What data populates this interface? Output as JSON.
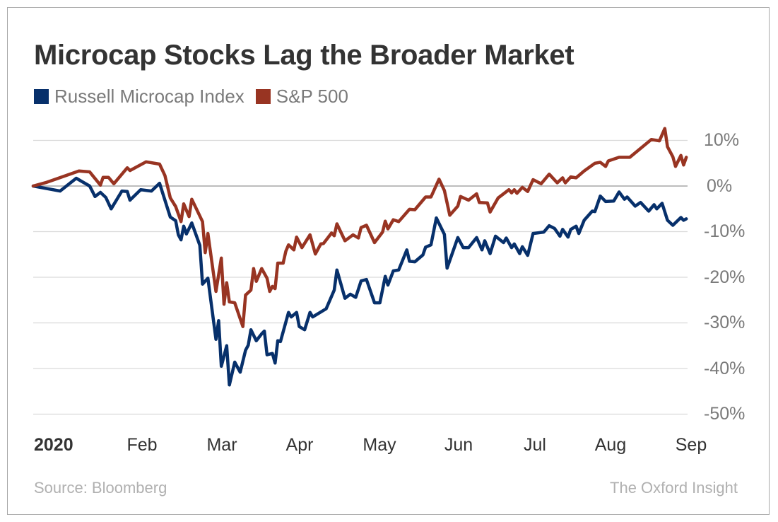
{
  "chart_data": {
    "type": "line",
    "title": "Microcap Stocks Lag the Broader Market",
    "xlabel": "",
    "ylabel": "",
    "x_tick_labels": [
      "2020",
      "Feb",
      "Mar",
      "Apr",
      "May",
      "Jun",
      "Jul",
      "Aug",
      "Sep"
    ],
    "xlim": [
      "2020-01-01",
      "2020-09-01"
    ],
    "y_tick_labels": [
      "10%",
      "0%",
      "-10%",
      "-20%",
      "-30%",
      "-40%",
      "-50%"
    ],
    "y_ticks": [
      10,
      0,
      -10,
      -20,
      -30,
      -40,
      -50
    ],
    "ylim": [
      -50,
      10
    ],
    "y_unit": "%",
    "grid": "horizontal",
    "y_axis_side": "right",
    "legend_position": "top-left",
    "series": [
      {
        "name": "Russell Microcap Index",
        "color": "#07306b",
        "points": [
          [
            "2020-01-01",
            0
          ],
          [
            "2020-01-11",
            -1.1
          ],
          [
            "2020-01-17",
            1.7
          ],
          [
            "2020-01-22",
            0
          ],
          [
            "2020-01-24",
            -2.3
          ],
          [
            "2020-01-26",
            -1.4
          ],
          [
            "2020-01-28",
            -2.5
          ],
          [
            "2020-01-30",
            -5.0
          ],
          [
            "2020-02-03",
            -1.1
          ],
          [
            "2020-02-05",
            -1.2
          ],
          [
            "2020-02-06",
            -3.1
          ],
          [
            "2020-02-10",
            -0.8
          ],
          [
            "2020-02-14",
            -1.1
          ],
          [
            "2020-02-17",
            0.6
          ],
          [
            "2020-02-21",
            -6.8
          ],
          [
            "2020-02-23",
            -7.6
          ],
          [
            "2020-02-24",
            -10.7
          ],
          [
            "2020-02-25",
            -11.8
          ],
          [
            "2020-02-26",
            -8.8
          ],
          [
            "2020-02-27",
            -10.5
          ],
          [
            "2020-02-29",
            -8.1
          ],
          [
            "2020-03-03",
            -13.0
          ],
          [
            "2020-03-04",
            -21.5
          ],
          [
            "2020-03-06",
            -20.2
          ],
          [
            "2020-03-09",
            -33.6
          ],
          [
            "2020-03-10",
            -29.5
          ],
          [
            "2020-03-11",
            -39.5
          ],
          [
            "2020-03-13",
            -35.0
          ],
          [
            "2020-03-14",
            -43.6
          ],
          [
            "2020-03-16",
            -38.6
          ],
          [
            "2020-03-18",
            -40.8
          ],
          [
            "2020-03-20",
            -36.0
          ],
          [
            "2020-03-21",
            -34.9
          ],
          [
            "2020-03-22",
            -31.5
          ],
          [
            "2020-03-24",
            -33.9
          ],
          [
            "2020-03-26",
            -32.4
          ],
          [
            "2020-03-27",
            -31.8
          ],
          [
            "2020-03-28",
            -37.0
          ],
          [
            "2020-03-30",
            -36.7
          ],
          [
            "2020-03-31",
            -38.8
          ],
          [
            "2020-04-01",
            -33.9
          ],
          [
            "2020-04-02",
            -34.1
          ],
          [
            "2020-04-05",
            -27.7
          ],
          [
            "2020-04-06",
            -28.7
          ],
          [
            "2020-04-08",
            -27.7
          ],
          [
            "2020-04-09",
            -30.8
          ],
          [
            "2020-04-11",
            -31.5
          ],
          [
            "2020-04-13",
            -27.7
          ],
          [
            "2020-04-14",
            -28.7
          ],
          [
            "2020-04-19",
            -26.9
          ],
          [
            "2020-04-22",
            -22.8
          ],
          [
            "2020-04-23",
            -18.4
          ],
          [
            "2020-04-26",
            -24.6
          ],
          [
            "2020-04-28",
            -23.7
          ],
          [
            "2020-04-30",
            -24.4
          ],
          [
            "2020-05-02",
            -20.8
          ],
          [
            "2020-05-04",
            -20.5
          ],
          [
            "2020-05-07",
            -25.6
          ],
          [
            "2020-05-09",
            -25.6
          ],
          [
            "2020-05-11",
            -19.8
          ],
          [
            "2020-05-12",
            -21.7
          ],
          [
            "2020-05-14",
            -18.6
          ],
          [
            "2020-05-16",
            -18.4
          ],
          [
            "2020-05-19",
            -14.0
          ],
          [
            "2020-05-20",
            -16.5
          ],
          [
            "2020-05-22",
            -16.6
          ],
          [
            "2020-05-25",
            -15.1
          ],
          [
            "2020-05-26",
            -13.4
          ],
          [
            "2020-05-28",
            -12.9
          ],
          [
            "2020-05-30",
            -7.0
          ],
          [
            "2020-06-02",
            -10.6
          ],
          [
            "2020-06-03",
            -18.0
          ],
          [
            "2020-06-07",
            -11.3
          ],
          [
            "2020-06-09",
            -13.5
          ],
          [
            "2020-06-11",
            -13.5
          ],
          [
            "2020-06-14",
            -11.3
          ],
          [
            "2020-06-16",
            -14.0
          ],
          [
            "2020-06-17",
            -12.0
          ],
          [
            "2020-06-19",
            -14.8
          ],
          [
            "2020-06-21",
            -11.0
          ],
          [
            "2020-06-24",
            -12.4
          ],
          [
            "2020-06-25",
            -11.4
          ],
          [
            "2020-06-27",
            -13.5
          ],
          [
            "2020-06-28",
            -12.7
          ],
          [
            "2020-06-30",
            -14.8
          ],
          [
            "2020-07-01",
            -13.3
          ],
          [
            "2020-07-03",
            -15.2
          ],
          [
            "2020-07-05",
            -10.4
          ],
          [
            "2020-07-09",
            -10.1
          ],
          [
            "2020-07-11",
            -8.7
          ],
          [
            "2020-07-13",
            -9.3
          ],
          [
            "2020-07-15",
            -11.0
          ],
          [
            "2020-07-16",
            -9.5
          ],
          [
            "2020-07-18",
            -11.2
          ],
          [
            "2020-07-19",
            -9.5
          ],
          [
            "2020-07-21",
            -8.8
          ],
          [
            "2020-07-22",
            -10.4
          ],
          [
            "2020-07-24",
            -7.5
          ],
          [
            "2020-07-27",
            -5.5
          ],
          [
            "2020-07-28",
            -5.6
          ],
          [
            "2020-07-30",
            -2.2
          ],
          [
            "2020-08-01",
            -3.4
          ],
          [
            "2020-08-04",
            -3.3
          ],
          [
            "2020-08-06",
            -1.3
          ],
          [
            "2020-08-08",
            -2.9
          ],
          [
            "2020-08-09",
            -2.4
          ],
          [
            "2020-08-12",
            -4.4
          ],
          [
            "2020-08-14",
            -3.6
          ],
          [
            "2020-08-17",
            -5.5
          ],
          [
            "2020-08-19",
            -4.1
          ],
          [
            "2020-08-20",
            -5.0
          ],
          [
            "2020-08-22",
            -3.8
          ],
          [
            "2020-08-24",
            -7.5
          ],
          [
            "2020-08-26",
            -8.6
          ],
          [
            "2020-08-29",
            -6.9
          ],
          [
            "2020-08-30",
            -7.5
          ],
          [
            "2020-08-31",
            -7.2
          ]
        ]
      },
      {
        "name": "S&P 500",
        "color": "#983422",
        "points": [
          [
            "2020-01-01",
            0
          ],
          [
            "2020-01-06",
            0.8
          ],
          [
            "2020-01-18",
            3.3
          ],
          [
            "2020-01-22",
            3.1
          ],
          [
            "2020-01-26",
            0.2
          ],
          [
            "2020-01-27",
            1.9
          ],
          [
            "2020-01-29",
            1.9
          ],
          [
            "2020-01-31",
            0.5
          ],
          [
            "2020-02-05",
            4.0
          ],
          [
            "2020-02-06",
            3.4
          ],
          [
            "2020-02-12",
            5.3
          ],
          [
            "2020-02-17",
            4.8
          ],
          [
            "2020-02-19",
            2.3
          ],
          [
            "2020-02-21",
            -2.6
          ],
          [
            "2020-02-23",
            -4.5
          ],
          [
            "2020-02-25",
            -7.8
          ],
          [
            "2020-02-26",
            -3.9
          ],
          [
            "2020-02-28",
            -6.7
          ],
          [
            "2020-02-29",
            -2.9
          ],
          [
            "2020-03-04",
            -7.8
          ],
          [
            "2020-03-05",
            -14.6
          ],
          [
            "2020-03-06",
            -10.4
          ],
          [
            "2020-03-09",
            -23.1
          ],
          [
            "2020-03-11",
            -15.8
          ],
          [
            "2020-03-12",
            -25.9
          ],
          [
            "2020-03-13",
            -21.2
          ],
          [
            "2020-03-14",
            -25.4
          ],
          [
            "2020-03-16",
            -25.6
          ],
          [
            "2020-03-19",
            -30.8
          ],
          [
            "2020-03-20",
            -23.9
          ],
          [
            "2020-03-22",
            -22.8
          ],
          [
            "2020-03-23",
            -18.1
          ],
          [
            "2020-03-24",
            -20.9
          ],
          [
            "2020-03-26",
            -18.1
          ],
          [
            "2020-03-28",
            -20.2
          ],
          [
            "2020-03-29",
            -23.1
          ],
          [
            "2020-03-30",
            -22.0
          ],
          [
            "2020-03-31",
            -22.5
          ],
          [
            "2020-04-01",
            -16.9
          ],
          [
            "2020-04-03",
            -16.9
          ],
          [
            "2020-04-04",
            -14.3
          ],
          [
            "2020-04-05",
            -12.9
          ],
          [
            "2020-04-07",
            -14.0
          ],
          [
            "2020-04-08",
            -11.2
          ],
          [
            "2020-04-10",
            -13.5
          ],
          [
            "2020-04-13",
            -10.7
          ],
          [
            "2020-04-15",
            -14.9
          ],
          [
            "2020-04-17",
            -12.7
          ],
          [
            "2020-04-18",
            -12.6
          ],
          [
            "2020-04-21",
            -10.3
          ],
          [
            "2020-04-22",
            -10.9
          ],
          [
            "2020-04-23",
            -8.3
          ],
          [
            "2020-04-26",
            -12.0
          ],
          [
            "2020-04-29",
            -10.7
          ],
          [
            "2020-05-01",
            -11.4
          ],
          [
            "2020-05-02",
            -9.1
          ],
          [
            "2020-05-04",
            -8.6
          ],
          [
            "2020-05-07",
            -12.4
          ],
          [
            "2020-05-10",
            -10.1
          ],
          [
            "2020-05-11",
            -7.7
          ],
          [
            "2020-05-12",
            -9.4
          ],
          [
            "2020-05-14",
            -7.4
          ],
          [
            "2020-05-16",
            -7.8
          ],
          [
            "2020-05-20",
            -5.1
          ],
          [
            "2020-05-22",
            -5.2
          ],
          [
            "2020-05-26",
            -2.4
          ],
          [
            "2020-05-28",
            -2.4
          ],
          [
            "2020-05-31",
            1.5
          ],
          [
            "2020-06-02",
            -1.0
          ],
          [
            "2020-06-04",
            -6.4
          ],
          [
            "2020-06-07",
            -4.4
          ],
          [
            "2020-06-08",
            -2.3
          ],
          [
            "2020-06-11",
            -3.1
          ],
          [
            "2020-06-14",
            -1.7
          ],
          [
            "2020-06-15",
            -3.6
          ],
          [
            "2020-06-18",
            -3.7
          ],
          [
            "2020-06-19",
            -5.7
          ],
          [
            "2020-06-22",
            -2.6
          ],
          [
            "2020-06-26",
            -0.8
          ],
          [
            "2020-06-27",
            -1.5
          ],
          [
            "2020-06-28",
            -0.8
          ],
          [
            "2020-06-29",
            -1.6
          ],
          [
            "2020-07-01",
            -0.3
          ],
          [
            "2020-07-03",
            -1.2
          ],
          [
            "2020-07-05",
            1.4
          ],
          [
            "2020-07-08",
            0.5
          ],
          [
            "2020-07-11",
            2.6
          ],
          [
            "2020-07-14",
            0.7
          ],
          [
            "2020-07-16",
            1.8
          ],
          [
            "2020-07-17",
            0.7
          ],
          [
            "2020-07-19",
            2.0
          ],
          [
            "2020-07-21",
            1.8
          ],
          [
            "2020-07-24",
            3.3
          ],
          [
            "2020-07-28",
            5.0
          ],
          [
            "2020-07-30",
            5.2
          ],
          [
            "2020-08-01",
            4.3
          ],
          [
            "2020-08-02",
            5.5
          ],
          [
            "2020-08-06",
            6.3
          ],
          [
            "2020-08-10",
            6.3
          ],
          [
            "2020-08-18",
            10.2
          ],
          [
            "2020-08-21",
            9.9
          ],
          [
            "2020-08-23",
            12.6
          ],
          [
            "2020-08-24",
            8.6
          ],
          [
            "2020-08-26",
            6.4
          ],
          [
            "2020-08-27",
            4.3
          ],
          [
            "2020-08-29",
            6.7
          ],
          [
            "2020-08-30",
            4.6
          ],
          [
            "2020-08-31",
            6.3
          ]
        ]
      }
    ],
    "source": "Source: Bloomberg",
    "publisher": "The Oxford Insight"
  }
}
